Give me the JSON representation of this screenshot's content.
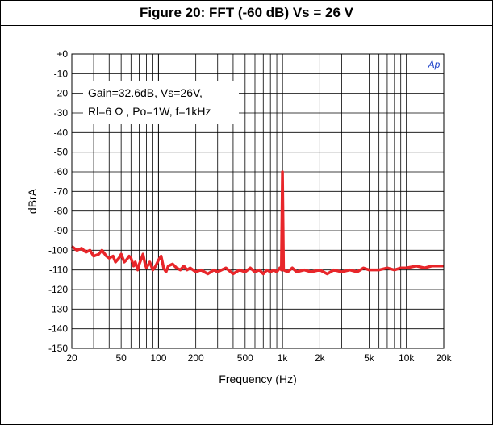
{
  "chart_data": {
    "type": "line",
    "title": "Figure 20: FFT (-60 dB) Vs = 26 V",
    "xlabel": "Frequency (Hz)",
    "ylabel": "dBrA",
    "x_scale": "log",
    "xlim": [
      20,
      20000
    ],
    "ylim": [
      -150,
      0
    ],
    "grid": true,
    "x_ticks": [
      {
        "value": 20,
        "label": "20"
      },
      {
        "value": 50,
        "label": "50"
      },
      {
        "value": 100,
        "label": "100"
      },
      {
        "value": 200,
        "label": "200"
      },
      {
        "value": 500,
        "label": "500"
      },
      {
        "value": 1000,
        "label": "1k"
      },
      {
        "value": 2000,
        "label": "2k"
      },
      {
        "value": 5000,
        "label": "5k"
      },
      {
        "value": 10000,
        "label": "10k"
      },
      {
        "value": 20000,
        "label": "20k"
      }
    ],
    "y_ticks": [
      {
        "value": 0,
        "label": "+0"
      },
      {
        "value": -10,
        "label": "-10"
      },
      {
        "value": -20,
        "label": "-20"
      },
      {
        "value": -30,
        "label": "-30"
      },
      {
        "value": -40,
        "label": "-40"
      },
      {
        "value": -50,
        "label": "-50"
      },
      {
        "value": -60,
        "label": "-60"
      },
      {
        "value": -70,
        "label": "-70"
      },
      {
        "value": -80,
        "label": "-80"
      },
      {
        "value": -90,
        "label": "-90"
      },
      {
        "value": -100,
        "label": "-100"
      },
      {
        "value": -110,
        "label": "-110"
      },
      {
        "value": -120,
        "label": "-120"
      },
      {
        "value": -130,
        "label": "-130"
      },
      {
        "value": -140,
        "label": "-140"
      },
      {
        "value": -150,
        "label": "-150"
      }
    ],
    "annotations": [
      "Gain=32.6dB, Vs=26V,",
      "Rl=6 Ω , Po=1W, f=1kHz"
    ],
    "logo_text": "Ap",
    "series": [
      {
        "color": "#e8262a",
        "points": [
          [
            20,
            -98
          ],
          [
            22,
            -100
          ],
          [
            24,
            -99
          ],
          [
            26,
            -101
          ],
          [
            28,
            -100
          ],
          [
            30,
            -103
          ],
          [
            33,
            -102
          ],
          [
            35,
            -100
          ],
          [
            38,
            -103
          ],
          [
            40,
            -104
          ],
          [
            43,
            -103
          ],
          [
            45,
            -106
          ],
          [
            48,
            -104
          ],
          [
            50,
            -102
          ],
          [
            53,
            -106
          ],
          [
            55,
            -105
          ],
          [
            58,
            -103
          ],
          [
            60,
            -104
          ],
          [
            63,
            -108
          ],
          [
            65,
            -106
          ],
          [
            68,
            -110
          ],
          [
            70,
            -107
          ],
          [
            73,
            -104
          ],
          [
            75,
            -102
          ],
          [
            78,
            -107
          ],
          [
            80,
            -109
          ],
          [
            85,
            -106
          ],
          [
            90,
            -110
          ],
          [
            95,
            -108
          ],
          [
            100,
            -105
          ],
          [
            105,
            -103
          ],
          [
            110,
            -109
          ],
          [
            115,
            -111
          ],
          [
            120,
            -108
          ],
          [
            130,
            -107
          ],
          [
            140,
            -109
          ],
          [
            150,
            -110
          ],
          [
            160,
            -108
          ],
          [
            170,
            -110
          ],
          [
            180,
            -109
          ],
          [
            200,
            -111
          ],
          [
            220,
            -110
          ],
          [
            250,
            -112
          ],
          [
            280,
            -110
          ],
          [
            300,
            -111
          ],
          [
            350,
            -109
          ],
          [
            400,
            -112
          ],
          [
            450,
            -110
          ],
          [
            500,
            -111
          ],
          [
            550,
            -109
          ],
          [
            600,
            -111
          ],
          [
            650,
            -110
          ],
          [
            700,
            -112
          ],
          [
            750,
            -110
          ],
          [
            800,
            -111
          ],
          [
            850,
            -110
          ],
          [
            900,
            -111
          ],
          [
            950,
            -109
          ],
          [
            980,
            -110
          ],
          [
            1000,
            -60
          ],
          [
            1020,
            -110
          ],
          [
            1100,
            -111
          ],
          [
            1200,
            -109
          ],
          [
            1300,
            -111
          ],
          [
            1500,
            -110
          ],
          [
            1700,
            -111
          ],
          [
            2000,
            -110
          ],
          [
            2300,
            -112
          ],
          [
            2600,
            -110
          ],
          [
            3000,
            -111
          ],
          [
            3500,
            -110
          ],
          [
            4000,
            -111
          ],
          [
            4500,
            -109
          ],
          [
            5000,
            -110
          ],
          [
            6000,
            -110
          ],
          [
            7000,
            -109
          ],
          [
            8000,
            -110
          ],
          [
            9000,
            -109
          ],
          [
            10000,
            -109
          ],
          [
            12000,
            -108
          ],
          [
            14000,
            -109
          ],
          [
            16000,
            -108
          ],
          [
            18000,
            -108
          ],
          [
            20000,
            -108
          ]
        ]
      }
    ]
  }
}
